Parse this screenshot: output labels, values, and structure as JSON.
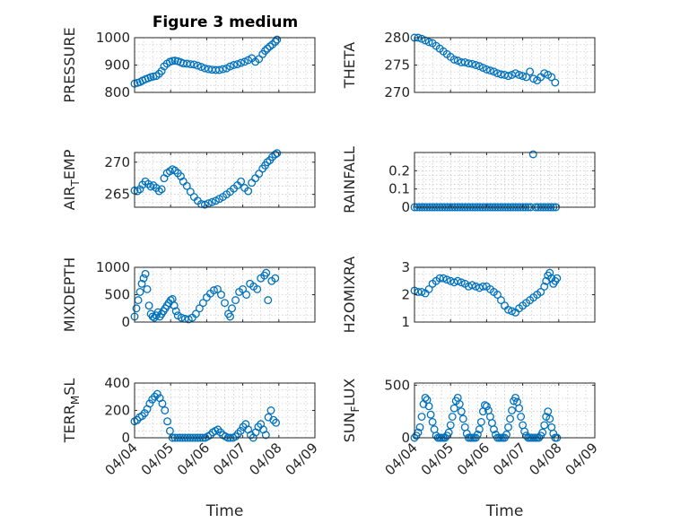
{
  "figure_title": "Figure 3 medium",
  "marker_color": "#0072BD",
  "chart_data": [
    {
      "type": "scatter",
      "id": "pressure",
      "ylabel": "PRESSURE",
      "ylabel_sub": null,
      "ylim": [
        800,
        1000
      ],
      "yticks": [
        800,
        900,
        1000
      ],
      "xlim": [
        0,
        5
      ],
      "xticks": [
        0,
        1,
        2,
        3,
        4,
        5
      ],
      "xticklabels": [
        "04/04",
        "04/05",
        "04/06",
        "04/07",
        "04/08",
        "04/09"
      ],
      "show_xticklabels": false,
      "xlabel": "",
      "x": [
        0.0,
        0.08,
        0.15,
        0.22,
        0.3,
        0.38,
        0.45,
        0.52,
        0.6,
        0.68,
        0.75,
        0.82,
        0.9,
        0.98,
        1.05,
        1.12,
        1.2,
        1.28,
        1.35,
        1.45,
        1.55,
        1.65,
        1.75,
        1.85,
        1.95,
        2.05,
        2.15,
        2.25,
        2.35,
        2.45,
        2.55,
        2.65,
        2.75,
        2.85,
        2.95,
        3.05,
        3.15,
        3.25,
        3.35,
        3.45,
        3.55,
        3.62,
        3.68,
        3.75,
        3.82,
        3.9,
        3.95
      ],
      "y": [
        832,
        835,
        838,
        843,
        848,
        852,
        856,
        858,
        860,
        868,
        878,
        895,
        905,
        912,
        915,
        916,
        914,
        910,
        906,
        905,
        903,
        902,
        898,
        893,
        888,
        885,
        883,
        882,
        882,
        885,
        888,
        895,
        900,
        903,
        908,
        912,
        918,
        925,
        912,
        922,
        940,
        952,
        960,
        968,
        975,
        985,
        993
      ]
    },
    {
      "type": "scatter",
      "id": "theta",
      "ylabel": "THETA",
      "ylabel_sub": null,
      "ylim": [
        270,
        280
      ],
      "yticks": [
        270,
        275,
        280
      ],
      "xlim": [
        0,
        5
      ],
      "xticks": [
        0,
        1,
        2,
        3,
        4,
        5
      ],
      "xticklabels": [
        "04/04",
        "04/05",
        "04/06",
        "04/07",
        "04/08",
        "04/09"
      ],
      "show_xticklabels": false,
      "xlabel": "",
      "x": [
        0.0,
        0.1,
        0.2,
        0.3,
        0.4,
        0.5,
        0.6,
        0.7,
        0.8,
        0.9,
        1.0,
        1.1,
        1.2,
        1.3,
        1.4,
        1.5,
        1.6,
        1.7,
        1.8,
        1.9,
        2.0,
        2.1,
        2.2,
        2.3,
        2.4,
        2.5,
        2.6,
        2.7,
        2.8,
        2.9,
        3.0,
        3.1,
        3.2,
        3.3,
        3.4,
        3.5,
        3.6,
        3.7,
        3.8,
        3.9
      ],
      "y": [
        280.0,
        280.0,
        279.8,
        279.5,
        279.2,
        279.0,
        278.5,
        278.0,
        277.5,
        277.0,
        276.5,
        276.0,
        275.8,
        275.5,
        275.5,
        275.3,
        275.2,
        275.0,
        274.8,
        274.5,
        274.2,
        274.0,
        273.8,
        273.5,
        273.3,
        273.2,
        273.0,
        273.2,
        273.5,
        273.2,
        273.0,
        272.8,
        273.8,
        272.5,
        272.2,
        272.8,
        273.5,
        273.2,
        272.8,
        271.8
      ]
    },
    {
      "type": "scatter",
      "id": "air-temp",
      "ylabel": "AIR",
      "ylabel_sub": "T",
      "ylabel_tail": "EMP",
      "ylim": [
        263,
        271.5
      ],
      "yticks": [
        265,
        270
      ],
      "xlim": [
        0,
        5
      ],
      "xticks": [
        0,
        1,
        2,
        3,
        4,
        5
      ],
      "xticklabels": [
        "04/04",
        "04/05",
        "04/06",
        "04/07",
        "04/08",
        "04/09"
      ],
      "show_xticklabels": false,
      "xlabel": "",
      "x": [
        0.0,
        0.08,
        0.15,
        0.22,
        0.3,
        0.38,
        0.45,
        0.52,
        0.6,
        0.68,
        0.75,
        0.82,
        0.9,
        0.98,
        1.05,
        1.12,
        1.2,
        1.28,
        1.35,
        1.45,
        1.55,
        1.65,
        1.75,
        1.85,
        1.95,
        2.05,
        2.15,
        2.25,
        2.35,
        2.45,
        2.55,
        2.65,
        2.75,
        2.85,
        2.95,
        3.05,
        3.15,
        3.25,
        3.35,
        3.45,
        3.55,
        3.62,
        3.68,
        3.75,
        3.82,
        3.9,
        3.95
      ],
      "y": [
        265.6,
        265.5,
        265.8,
        266.5,
        267.0,
        266.6,
        266.2,
        266.4,
        266.0,
        265.5,
        265.8,
        267.5,
        268.3,
        268.6,
        268.9,
        268.7,
        268.3,
        267.8,
        267.0,
        266.3,
        265.4,
        264.6,
        264.0,
        263.5,
        263.4,
        263.6,
        263.8,
        264.0,
        264.3,
        264.6,
        265.0,
        265.4,
        265.9,
        266.4,
        267.0,
        266.0,
        265.5,
        266.8,
        267.5,
        268.2,
        269.0,
        269.5,
        270.0,
        270.3,
        270.8,
        271.2,
        271.4
      ]
    },
    {
      "type": "scatter",
      "id": "rainfall",
      "ylabel": "RAINFALL",
      "ylabel_sub": null,
      "ylim": [
        0,
        0.3
      ],
      "yticks": [
        0,
        0.1,
        0.2
      ],
      "yticklabels": [
        "0",
        "0.1",
        "0.2"
      ],
      "xlim": [
        0,
        5
      ],
      "xticks": [
        0,
        1,
        2,
        3,
        4,
        5
      ],
      "xticklabels": [
        "04/04",
        "04/05",
        "04/06",
        "04/07",
        "04/08",
        "04/09"
      ],
      "show_xticklabels": false,
      "xlabel": "",
      "x": [
        0.0,
        0.07,
        0.14,
        0.21,
        0.28,
        0.35,
        0.42,
        0.49,
        0.56,
        0.63,
        0.7,
        0.77,
        0.84,
        0.91,
        0.98,
        1.05,
        1.12,
        1.19,
        1.26,
        1.33,
        1.4,
        1.47,
        1.54,
        1.61,
        1.68,
        1.75,
        1.82,
        1.89,
        1.96,
        2.03,
        2.1,
        2.17,
        2.24,
        2.31,
        2.38,
        2.45,
        2.52,
        2.59,
        2.66,
        2.73,
        2.8,
        2.87,
        2.94,
        3.01,
        3.08,
        3.15,
        3.22,
        3.29,
        3.36,
        3.43,
        3.5,
        3.57,
        3.64,
        3.71,
        3.78,
        3.85,
        3.92
      ],
      "y": [
        0,
        0,
        0,
        0,
        0,
        0,
        0,
        0,
        0,
        0,
        0,
        0,
        0,
        0,
        0,
        0,
        0,
        0,
        0,
        0,
        0,
        0,
        0,
        0,
        0,
        0,
        0,
        0,
        0,
        0,
        0,
        0,
        0,
        0,
        0,
        0,
        0,
        0,
        0,
        0,
        0,
        0,
        0,
        0,
        0,
        0,
        0,
        0.29,
        0,
        0,
        0,
        0,
        0,
        0,
        0,
        0,
        0
      ]
    },
    {
      "type": "scatter",
      "id": "mixdepth",
      "ylabel": "MIXDEPTH",
      "ylabel_sub": null,
      "ylim": [
        0,
        1000
      ],
      "yticks": [
        0,
        500,
        1000
      ],
      "xlim": [
        0,
        5
      ],
      "xticks": [
        0,
        1,
        2,
        3,
        4,
        5
      ],
      "xticklabels": [
        "04/04",
        "04/05",
        "04/06",
        "04/07",
        "04/08",
        "04/09"
      ],
      "show_xticklabels": false,
      "xlabel": "",
      "x": [
        0.0,
        0.05,
        0.1,
        0.15,
        0.2,
        0.25,
        0.3,
        0.35,
        0.4,
        0.45,
        0.5,
        0.55,
        0.6,
        0.65,
        0.7,
        0.75,
        0.8,
        0.85,
        0.9,
        0.95,
        1.0,
        1.05,
        1.1,
        1.15,
        1.2,
        1.3,
        1.4,
        1.5,
        1.6,
        1.7,
        1.8,
        1.9,
        2.0,
        2.1,
        2.2,
        2.3,
        2.4,
        2.5,
        2.6,
        2.65,
        2.7,
        2.8,
        2.9,
        3.0,
        3.1,
        3.2,
        3.3,
        3.4,
        3.5,
        3.6,
        3.65,
        3.7,
        3.8,
        3.9
      ],
      "y": [
        100,
        250,
        400,
        550,
        700,
        800,
        880,
        600,
        300,
        150,
        100,
        80,
        120,
        180,
        100,
        150,
        200,
        250,
        300,
        350,
        400,
        420,
        300,
        200,
        120,
        80,
        60,
        50,
        80,
        150,
        250,
        350,
        450,
        520,
        580,
        600,
        500,
        350,
        150,
        100,
        250,
        400,
        550,
        600,
        500,
        700,
        650,
        600,
        800,
        850,
        900,
        400,
        750,
        800
      ]
    },
    {
      "type": "scatter",
      "id": "h2omixra",
      "ylabel": "H2OMIXRA",
      "ylabel_sub": null,
      "ylim": [
        1,
        3
      ],
      "yticks": [
        1,
        2,
        3
      ],
      "xlim": [
        0,
        5
      ],
      "xticks": [
        0,
        1,
        2,
        3,
        4,
        5
      ],
      "xticklabels": [
        "04/04",
        "04/05",
        "04/06",
        "04/07",
        "04/08",
        "04/09"
      ],
      "show_xticklabels": false,
      "xlabel": "",
      "x": [
        0.0,
        0.1,
        0.2,
        0.3,
        0.4,
        0.5,
        0.6,
        0.7,
        0.8,
        0.9,
        1.0,
        1.1,
        1.2,
        1.3,
        1.4,
        1.5,
        1.6,
        1.7,
        1.8,
        1.9,
        2.0,
        2.1,
        2.2,
        2.3,
        2.4,
        2.5,
        2.6,
        2.7,
        2.8,
        2.9,
        3.0,
        3.1,
        3.2,
        3.3,
        3.4,
        3.5,
        3.6,
        3.65,
        3.7,
        3.75,
        3.8,
        3.85,
        3.9,
        3.95
      ],
      "y": [
        2.15,
        2.1,
        2.1,
        2.05,
        2.2,
        2.4,
        2.5,
        2.6,
        2.6,
        2.55,
        2.5,
        2.45,
        2.5,
        2.45,
        2.4,
        2.3,
        2.35,
        2.3,
        2.25,
        2.3,
        2.3,
        2.2,
        2.1,
        2.0,
        1.8,
        1.6,
        1.45,
        1.4,
        1.35,
        1.5,
        1.6,
        1.7,
        1.8,
        1.9,
        2.0,
        2.1,
        2.3,
        2.5,
        2.7,
        2.8,
        2.6,
        2.4,
        2.5,
        2.6
      ]
    },
    {
      "type": "scatter",
      "id": "terr-msl",
      "ylabel": "TERR",
      "ylabel_sub": "M",
      "ylabel_tail": "SL",
      "ylim": [
        0,
        400
      ],
      "yticks": [
        0,
        200,
        400
      ],
      "xlim": [
        0,
        5
      ],
      "xticks": [
        0,
        1,
        2,
        3,
        4,
        5
      ],
      "xticklabels": [
        "04/04",
        "04/05",
        "04/06",
        "04/07",
        "04/08",
        "04/09"
      ],
      "show_xticklabels": true,
      "xlabel": "Time",
      "x": [
        0.0,
        0.07,
        0.14,
        0.21,
        0.28,
        0.35,
        0.42,
        0.49,
        0.56,
        0.63,
        0.7,
        0.77,
        0.84,
        0.91,
        0.98,
        1.05,
        1.12,
        1.19,
        1.26,
        1.33,
        1.4,
        1.47,
        1.54,
        1.61,
        1.68,
        1.75,
        1.82,
        1.89,
        1.96,
        2.03,
        2.1,
        2.17,
        2.24,
        2.31,
        2.38,
        2.45,
        2.52,
        2.59,
        2.66,
        2.73,
        2.8,
        2.87,
        2.94,
        3.01,
        3.08,
        3.15,
        3.22,
        3.29,
        3.36,
        3.43,
        3.5,
        3.57,
        3.64,
        3.71,
        3.78,
        3.85,
        3.92
      ],
      "y": [
        120,
        130,
        150,
        160,
        180,
        210,
        250,
        280,
        300,
        320,
        290,
        250,
        200,
        120,
        50,
        0,
        0,
        0,
        0,
        0,
        0,
        0,
        0,
        0,
        0,
        0,
        0,
        0,
        0,
        10,
        20,
        40,
        50,
        60,
        40,
        20,
        10,
        0,
        0,
        0,
        10,
        30,
        50,
        80,
        100,
        60,
        20,
        0,
        40,
        80,
        100,
        60,
        20,
        150,
        200,
        130,
        110
      ]
    },
    {
      "type": "scatter",
      "id": "sun-flux",
      "ylabel": "SUN",
      "ylabel_sub": "F",
      "ylabel_tail": "LUX",
      "ylim": [
        0,
        520
      ],
      "yticks": [
        0,
        500
      ],
      "xlim": [
        0,
        5
      ],
      "xticks": [
        0,
        1,
        2,
        3,
        4,
        5
      ],
      "xticklabels": [
        "04/04",
        "04/05",
        "04/06",
        "04/07",
        "04/08",
        "04/09"
      ],
      "show_xticklabels": true,
      "xlabel": "Time",
      "x": [
        0.0,
        0.05,
        0.1,
        0.15,
        0.2,
        0.25,
        0.3,
        0.35,
        0.4,
        0.45,
        0.5,
        0.55,
        0.6,
        0.65,
        0.7,
        0.75,
        0.8,
        0.85,
        0.9,
        0.95,
        1.0,
        1.05,
        1.1,
        1.15,
        1.2,
        1.25,
        1.3,
        1.35,
        1.4,
        1.45,
        1.5,
        1.55,
        1.6,
        1.65,
        1.7,
        1.75,
        1.8,
        1.85,
        1.9,
        1.95,
        2.0,
        2.05,
        2.1,
        2.15,
        2.2,
        2.25,
        2.3,
        2.35,
        2.4,
        2.45,
        2.5,
        2.55,
        2.6,
        2.65,
        2.7,
        2.75,
        2.8,
        2.85,
        2.9,
        2.95,
        3.0,
        3.05,
        3.1,
        3.15,
        3.2,
        3.25,
        3.3,
        3.35,
        3.4,
        3.45,
        3.5,
        3.55,
        3.6,
        3.65,
        3.7,
        3.75,
        3.8,
        3.85,
        3.9,
        3.95
      ],
      "y": [
        0,
        20,
        50,
        100,
        200,
        320,
        380,
        360,
        300,
        220,
        150,
        80,
        20,
        0,
        0,
        0,
        0,
        0,
        20,
        50,
        120,
        200,
        280,
        350,
        380,
        320,
        250,
        180,
        100,
        40,
        0,
        0,
        0,
        0,
        0,
        30,
        80,
        150,
        250,
        310,
        300,
        260,
        200,
        140,
        80,
        30,
        0,
        0,
        0,
        0,
        0,
        30,
        100,
        180,
        260,
        350,
        380,
        340,
        280,
        200,
        120,
        60,
        20,
        0,
        0,
        0,
        0,
        0,
        0,
        0,
        20,
        50,
        120,
        200,
        250,
        180,
        100,
        40,
        0,
        0
      ]
    }
  ]
}
